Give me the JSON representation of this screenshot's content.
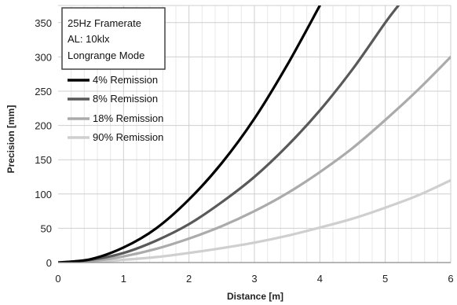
{
  "chart_data": {
    "type": "line",
    "info_box": [
      "25Hz  Framerate",
      "AL: 10klx",
      "Longrange Mode"
    ],
    "xlabel": "Distance [m]",
    "ylabel": "Precision [mm]",
    "xlim": [
      0,
      6
    ],
    "ylim": [
      0,
      375
    ],
    "x_ticks": [
      0,
      1,
      2,
      3,
      4,
      5,
      6
    ],
    "y_ticks": [
      0,
      50,
      100,
      150,
      200,
      250,
      300,
      350
    ],
    "x_tick_labels": [
      "0",
      "1",
      "2",
      "3",
      "4",
      "5",
      "6"
    ],
    "y_tick_labels": [
      "0",
      "50",
      "100",
      "150",
      "200",
      "250",
      "300",
      "350"
    ],
    "x_minor_grid_step": 0.2,
    "grid": true,
    "legend_position": "top-left",
    "series": [
      {
        "name": "4% Remission",
        "color": "#000000",
        "points": [
          [
            0,
            0
          ],
          [
            0.5,
            5
          ],
          [
            1,
            22
          ],
          [
            1.5,
            50
          ],
          [
            2,
            92
          ],
          [
            2.5,
            145
          ],
          [
            3,
            210
          ],
          [
            3.5,
            288
          ],
          [
            4,
            375
          ]
        ]
      },
      {
        "name": "8% Remission",
        "color": "#595959",
        "points": [
          [
            0,
            0
          ],
          [
            0.5,
            4
          ],
          [
            1,
            14
          ],
          [
            1.5,
            32
          ],
          [
            2,
            56
          ],
          [
            2.5,
            88
          ],
          [
            3,
            125
          ],
          [
            3.5,
            170
          ],
          [
            4,
            222
          ],
          [
            4.5,
            282
          ],
          [
            5,
            350
          ],
          [
            5.2,
            375
          ]
        ]
      },
      {
        "name": "18% Remission",
        "color": "#ababab",
        "points": [
          [
            0,
            0
          ],
          [
            0.5,
            2
          ],
          [
            1,
            9
          ],
          [
            1.5,
            20
          ],
          [
            2,
            35
          ],
          [
            2.5,
            53
          ],
          [
            3,
            75
          ],
          [
            3.5,
            101
          ],
          [
            4,
            132
          ],
          [
            4.5,
            167
          ],
          [
            5,
            208
          ],
          [
            5.5,
            252
          ],
          [
            6,
            300
          ]
        ]
      },
      {
        "name": "90% Remission",
        "color": "#cfcfcf",
        "points": [
          [
            0,
            0
          ],
          [
            0.5,
            1
          ],
          [
            1,
            4
          ],
          [
            1.5,
            8
          ],
          [
            2,
            14
          ],
          [
            2.5,
            21
          ],
          [
            3,
            29
          ],
          [
            3.5,
            39
          ],
          [
            4,
            51
          ],
          [
            4.5,
            64
          ],
          [
            5,
            80
          ],
          [
            5.5,
            98
          ],
          [
            6,
            120
          ]
        ]
      }
    ]
  }
}
